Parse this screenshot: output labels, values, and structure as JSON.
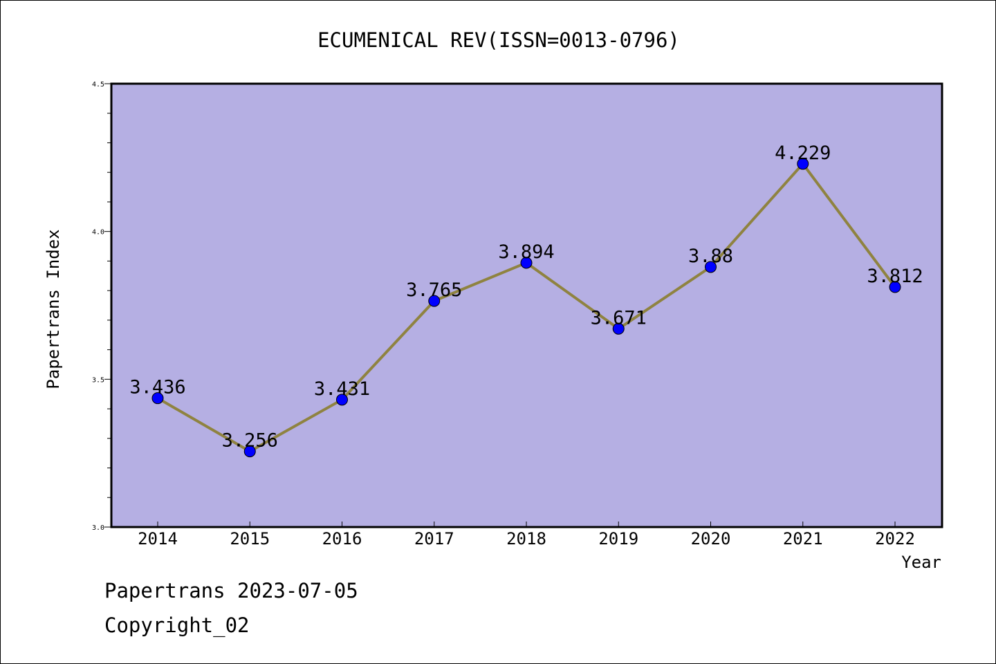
{
  "chart_data": {
    "type": "line",
    "title": "ECUMENICAL REV(ISSN=0013-0796)",
    "xlabel": "Year",
    "ylabel": "Papertrans Index",
    "categories": [
      "2014",
      "2015",
      "2016",
      "2017",
      "2018",
      "2019",
      "2020",
      "2021",
      "2022"
    ],
    "series": [
      {
        "values": [
          3.436,
          3.256,
          3.431,
          3.765,
          3.894,
          3.671,
          3.88,
          4.229,
          3.812
        ],
        "labels": [
          "3.436",
          "3.256",
          "3.431",
          "3.765",
          "3.894",
          "3.671",
          "3.88",
          "4.229",
          "3.812"
        ]
      }
    ],
    "ylim": [
      3.0,
      4.5
    ],
    "y_ticks": [
      "3.0",
      "3.5",
      "4.0",
      "4.5"
    ],
    "y_tick_values": [
      3.0,
      3.5,
      4.0,
      4.5
    ],
    "y_minor_step": 0.1,
    "grid": false,
    "colors": {
      "plot_background": "#b5afe3",
      "line": "#8f8340",
      "marker": "#0000ff"
    }
  },
  "footer": {
    "line1": "Papertrans 2023-07-05",
    "line2": "Copyright_02"
  }
}
